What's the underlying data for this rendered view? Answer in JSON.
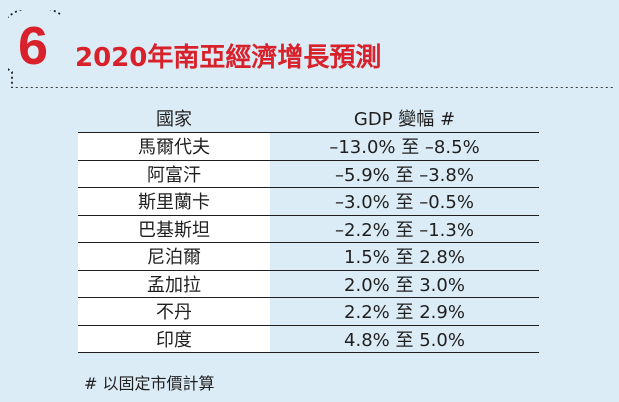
{
  "header": {
    "number": "6",
    "title": "2020年南亞經濟增長預測"
  },
  "table": {
    "headers": [
      "國家",
      "GDP 變幅 #"
    ],
    "rows": [
      {
        "country": "馬爾代夫",
        "range": "–13.0% 至 –8.5%"
      },
      {
        "country": "阿富汗",
        "range": "–5.9% 至 –3.8%"
      },
      {
        "country": "斯里蘭卡",
        "range": "–3.0% 至 –0.5%"
      },
      {
        "country": "巴基斯坦",
        "range": "–2.2% 至 –1.3%"
      },
      {
        "country": "尼泊爾",
        "range": "1.5% 至 2.8%"
      },
      {
        "country": "孟加拉",
        "range": "2.0% 至 3.0%"
      },
      {
        "country": "不丹",
        "range": "2.2% 至 2.9%"
      },
      {
        "country": "印度",
        "range": "4.8% 至 5.0%"
      }
    ]
  },
  "footnote": "# 以固定市價計算",
  "colors": {
    "accent": "#d8212a",
    "background": "#dcecf7",
    "text": "#1f1f1f"
  }
}
